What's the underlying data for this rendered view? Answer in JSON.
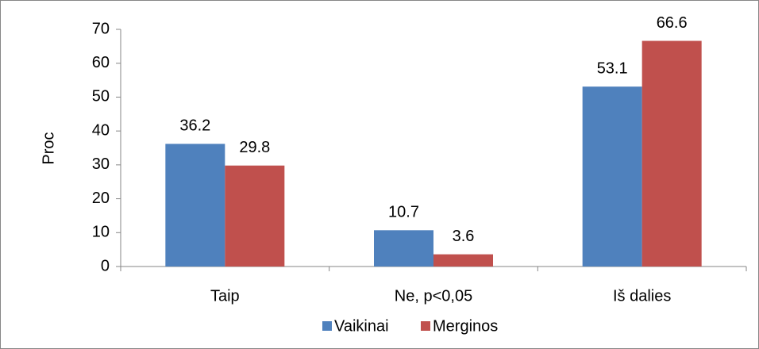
{
  "chart_data": {
    "type": "bar",
    "ylabel": "Proc",
    "categories": [
      "Taip",
      "Ne, p<0,05",
      "Iš dalies"
    ],
    "series": [
      {
        "name": "Vaikinai",
        "color": "#4f81bd",
        "values": [
          36.2,
          10.7,
          53.1
        ]
      },
      {
        "name": "Merginos",
        "color": "#c0504d",
        "values": [
          29.8,
          3.6,
          66.6
        ]
      }
    ],
    "ylim": [
      0,
      70
    ],
    "yticks": [
      0,
      10,
      20,
      30,
      40,
      50,
      60,
      70
    ],
    "grid": false,
    "legend": "bottom"
  }
}
